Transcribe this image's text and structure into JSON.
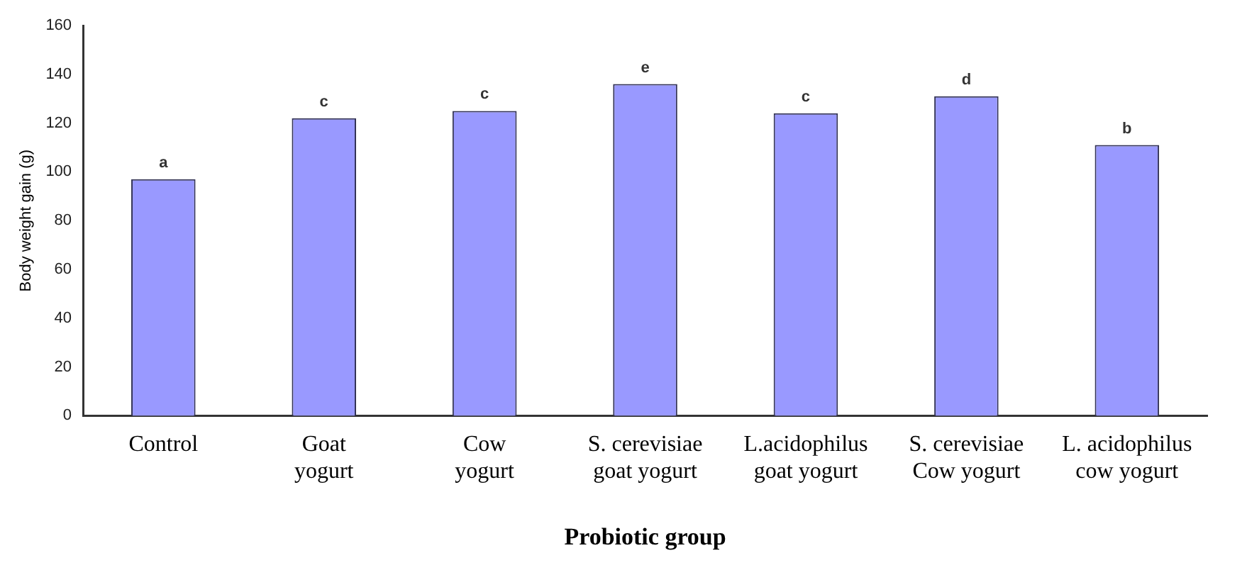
{
  "chart_data": {
    "type": "bar",
    "xlabel": "Probiotic group",
    "ylabel": "Body weight gain (g)",
    "categories": [
      "Control",
      "Goat\nyogurt",
      "Cow\nyogurt",
      "S. cerevisiae\ngoat yogurt",
      "L.acidophilus\ngoat yogurt",
      "S. cerevisiae\nCow yogurt",
      "L. acidophilus\ncow yogurt"
    ],
    "values": [
      97,
      122,
      125,
      136,
      124,
      131,
      111
    ],
    "color": "#9999ff",
    "ylim": [
      0,
      160
    ],
    "yticks": [
      0,
      20,
      40,
      60,
      80,
      100,
      120,
      140,
      160
    ],
    "grid": false,
    "legend": false,
    "annotations": [
      {
        "text": "a",
        "x": "Control",
        "y": 97
      },
      {
        "text": "c",
        "x": "Goat\nyogurt",
        "y": 122
      },
      {
        "text": "c",
        "x": "Cow\nyogurt",
        "y": 125
      },
      {
        "text": "e",
        "x": "S. cerevisiae\ngoat yogurt",
        "y": 136
      },
      {
        "text": "c",
        "x": "L.acidophilus\ngoat yogurt",
        "y": 124
      },
      {
        "text": "d",
        "x": "S. cerevisiae\nCow yogurt",
        "y": 131
      },
      {
        "text": "b",
        "x": "L. acidophilus\ncow yogurt",
        "y": 111
      }
    ]
  }
}
